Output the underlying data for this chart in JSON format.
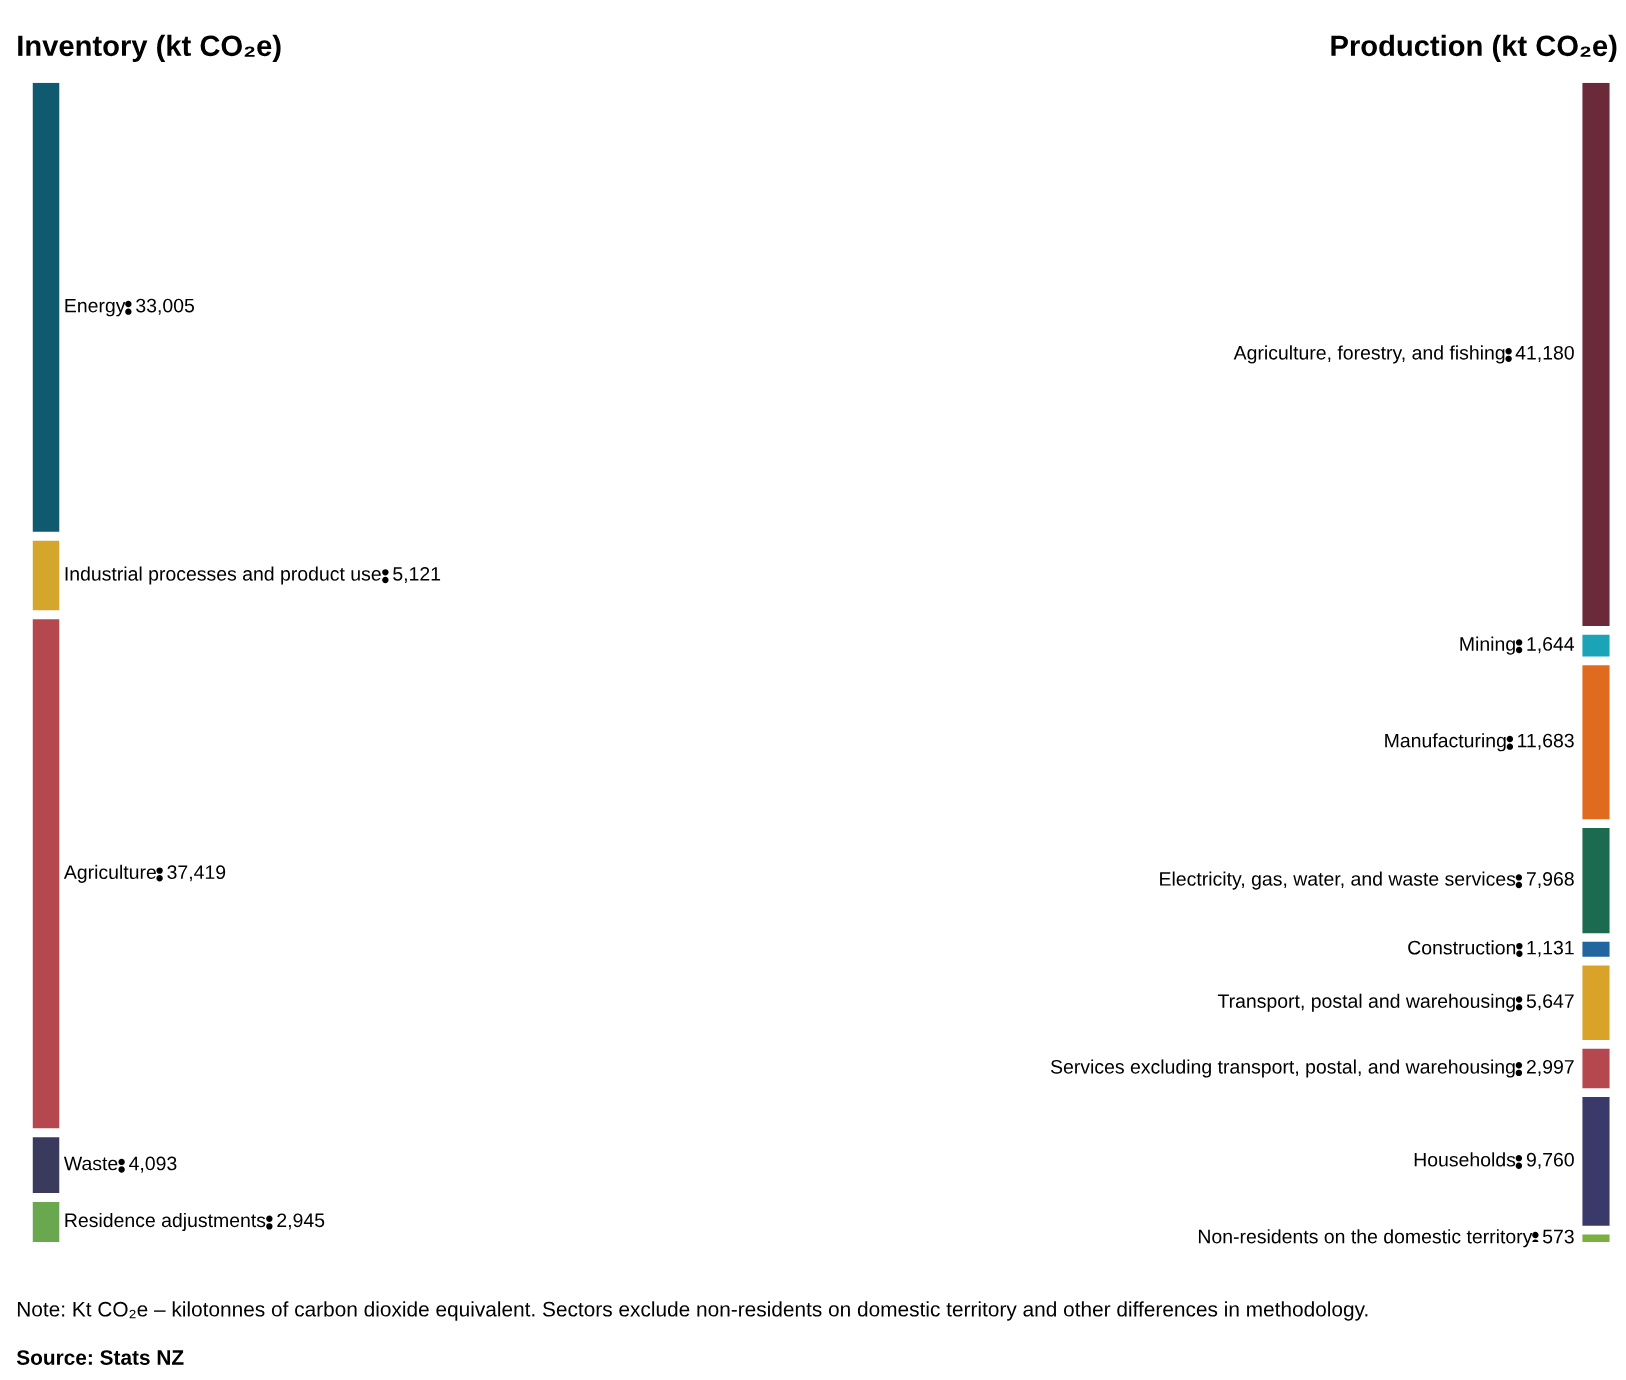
{
  "chart_data": [
    {
      "type": "other",
      "title": "Inventory (kt CO₂e)",
      "categories": [
        "Energy",
        "Industrial processes and product use",
        "Agriculture",
        "Waste",
        "Residence adjustments"
      ],
      "values": [
        33005,
        5121,
        37419,
        4093,
        2945
      ],
      "value_labels": [
        "33,005",
        "5,121",
        "37,419",
        "4,093",
        "2,945"
      ],
      "colors": [
        "#0f5a6e",
        "#d4a72c",
        "#b5484f",
        "#3a3a5c",
        "#6aa84f"
      ]
    },
    {
      "type": "other",
      "title": "Production (kt CO₂e)",
      "categories": [
        "Agriculture, forestry, and fishing",
        "Mining",
        "Manufacturing",
        "Electricity, gas, water, and waste services",
        "Construction",
        "Transport, postal and warehousing",
        "Services excluding transport, postal, and warehousing",
        "Households",
        "Non-residents on the domestic territory"
      ],
      "values": [
        41180,
        1644,
        11683,
        7968,
        1131,
        5647,
        2997,
        9760,
        573
      ],
      "value_labels": [
        "41,180",
        "1,644",
        "11,683",
        "7,968",
        "1,131",
        "5,647",
        "2,997",
        "9,760",
        "573"
      ],
      "colors": [
        "#6b2a3a",
        "#1ba3b8",
        "#e06a1e",
        "#1c6b50",
        "#2266a0",
        "#d9a32a",
        "#b5484f",
        "#3a3a6a",
        "#7ab040"
      ],
      "annotations": [
        "Note: Kt CO₂e – kilotonnes of carbon dioxide equivalent. Sectors exclude non-residents on domestic territory and other differences in methodology.",
        "Source: Stats NZ"
      ]
    }
  ]
}
